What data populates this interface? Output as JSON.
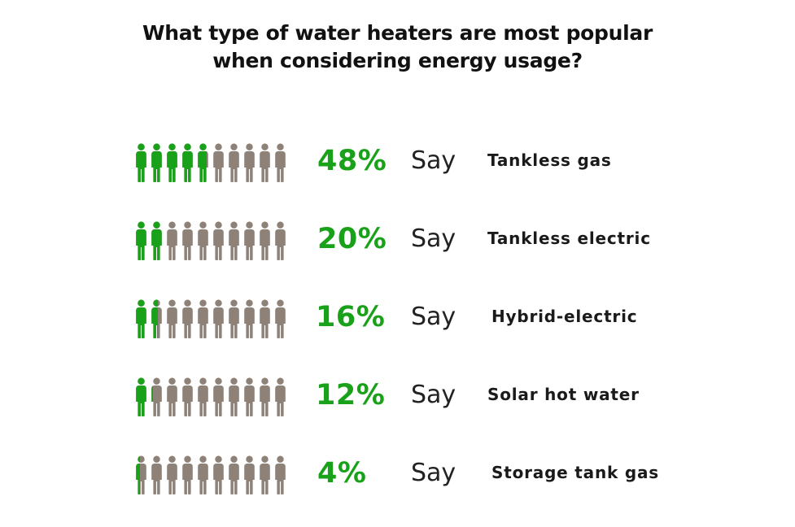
{
  "colors": {
    "highlight": "#1aa11a",
    "neutral": "#8e8178",
    "text": "#1a1a1a"
  },
  "icon": "person-icon",
  "chart_data": {
    "type": "pictogram",
    "title": "What type of water heaters are most popular when considering energy usage?",
    "title_lines": [
      "What type of water heaters are most popular",
      "when considering energy usage?"
    ],
    "icons_per_row": 10,
    "say_label": "Say",
    "units": "%",
    "rows": [
      {
        "category": "Tankless gas",
        "value": 48,
        "label": "48%"
      },
      {
        "category": "Tankless electric",
        "value": 20,
        "label": "20%"
      },
      {
        "category": "Hybrid-electric",
        "value": 16,
        "label": "16%"
      },
      {
        "category": "Solar hot water",
        "value": 12,
        "label": "12%"
      },
      {
        "category": "Storage tank gas",
        "value": 4,
        "label": "4%"
      }
    ]
  }
}
